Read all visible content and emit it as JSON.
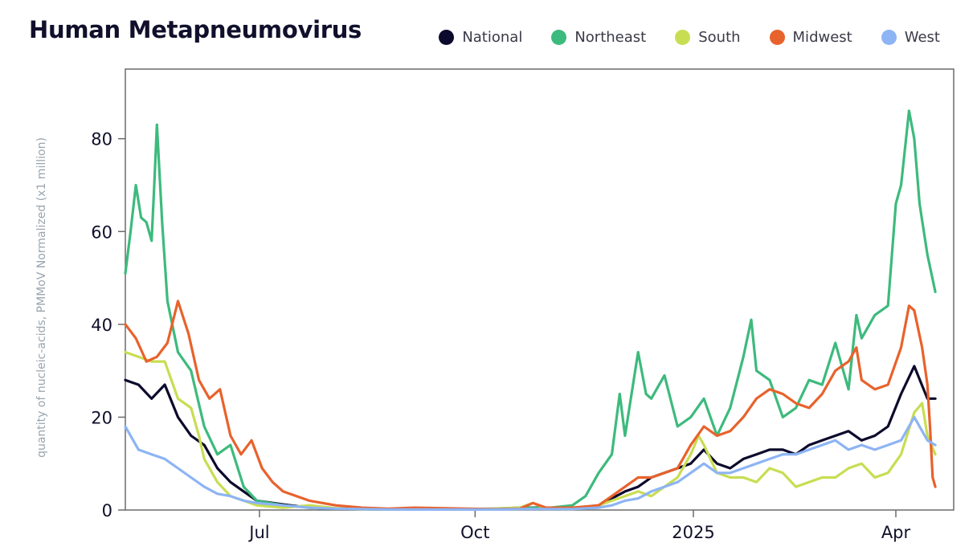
{
  "chart_data": {
    "type": "line",
    "title": "Human Metapneumovirus",
    "ylabel": "quantity of nucleic-acids, PMMoV Normalized (x1 million)",
    "xlabel": "",
    "ylim": [
      0,
      95
    ],
    "xlim": [
      0,
      315
    ],
    "yticks": [
      {
        "value": 0,
        "label": "0"
      },
      {
        "value": 20,
        "label": "20"
      },
      {
        "value": 40,
        "label": "40"
      },
      {
        "value": 60,
        "label": "60"
      },
      {
        "value": 80,
        "label": "80"
      }
    ],
    "xticks": [
      {
        "value": 51,
        "label": "Jul"
      },
      {
        "value": 133,
        "label": "Oct"
      },
      {
        "value": 216,
        "label": "2025"
      },
      {
        "value": 293,
        "label": "Apr"
      }
    ],
    "x_unit": "days since 2024-05-11",
    "legend_position": "top-right",
    "series": [
      {
        "name": "National",
        "color": "#0c0a2c",
        "x": [
          0,
          5,
          10,
          15,
          20,
          25,
          30,
          35,
          40,
          45,
          50,
          60,
          70,
          80,
          90,
          100,
          110,
          120,
          130,
          140,
          150,
          160,
          170,
          180,
          185,
          190,
          195,
          200,
          205,
          210,
          215,
          220,
          225,
          230,
          235,
          240,
          245,
          250,
          255,
          260,
          265,
          270,
          275,
          280,
          285,
          290,
          295,
          300,
          305,
          308
        ],
        "values": [
          28,
          27,
          24,
          27,
          20,
          16,
          14,
          9,
          6,
          4,
          2,
          1.2,
          0.5,
          0.3,
          0.2,
          0.1,
          0.1,
          0.1,
          0.1,
          0.2,
          0.5,
          0.5,
          0.3,
          1,
          2.5,
          4,
          5,
          7,
          8,
          9,
          10,
          13,
          10,
          9,
          11,
          12,
          13,
          13,
          12,
          14,
          15,
          16,
          17,
          15,
          16,
          18,
          25,
          31,
          24,
          24
        ]
      },
      {
        "name": "Northeast",
        "color": "#3dba7d",
        "x": [
          0,
          2,
          4,
          6,
          8,
          10,
          11,
          12,
          14,
          16,
          20,
          25,
          30,
          35,
          40,
          45,
          50,
          60,
          70,
          80,
          90,
          100,
          110,
          120,
          130,
          140,
          150,
          160,
          170,
          175,
          180,
          185,
          188,
          190,
          195,
          198,
          200,
          205,
          210,
          215,
          220,
          225,
          230,
          235,
          238,
          240,
          245,
          250,
          255,
          260,
          265,
          270,
          275,
          278,
          280,
          285,
          290,
          293,
          295,
          298,
          300,
          302,
          305,
          308
        ],
        "values": [
          51,
          60,
          70,
          63,
          62,
          58,
          70,
          83,
          62,
          45,
          34,
          30,
          18,
          12,
          14,
          5,
          2,
          1,
          0.5,
          0.3,
          0.2,
          0.1,
          0.1,
          0.1,
          0.2,
          0.3,
          0.5,
          0.4,
          1,
          3,
          8,
          12,
          25,
          16,
          34,
          25,
          24,
          29,
          18,
          20,
          24,
          16,
          22,
          33,
          41,
          30,
          28,
          20,
          22,
          28,
          27,
          36,
          26,
          42,
          37,
          42,
          44,
          66,
          70,
          86,
          80,
          66,
          55,
          47
        ]
      },
      {
        "name": "South",
        "color": "#c8dd52",
        "x": [
          0,
          5,
          10,
          15,
          20,
          25,
          28,
          30,
          35,
          40,
          45,
          50,
          60,
          70,
          80,
          90,
          100,
          110,
          120,
          130,
          140,
          150,
          155,
          160,
          170,
          180,
          185,
          190,
          195,
          200,
          205,
          210,
          215,
          218,
          220,
          225,
          230,
          235,
          240,
          245,
          250,
          255,
          260,
          265,
          270,
          275,
          280,
          285,
          290,
          295,
          300,
          303,
          305,
          308
        ],
        "values": [
          34,
          33,
          32,
          32,
          24,
          22,
          16,
          11,
          6,
          3,
          2,
          1,
          0.5,
          1,
          0.4,
          0.2,
          0.1,
          0.1,
          0.1,
          0.1,
          0.3,
          0.5,
          1.5,
          0.3,
          0.2,
          1,
          2,
          3,
          4,
          3,
          5,
          7,
          12,
          16,
          14,
          8,
          7,
          7,
          6,
          9,
          8,
          5,
          6,
          7,
          7,
          9,
          10,
          7,
          8,
          12,
          21,
          23,
          16,
          12
        ]
      },
      {
        "name": "Midwest",
        "color": "#e8622c",
        "x": [
          0,
          4,
          8,
          12,
          16,
          20,
          24,
          28,
          32,
          36,
          40,
          44,
          48,
          52,
          56,
          60,
          70,
          80,
          90,
          100,
          110,
          120,
          130,
          140,
          150,
          155,
          160,
          170,
          180,
          185,
          190,
          195,
          200,
          205,
          210,
          215,
          220,
          225,
          230,
          235,
          240,
          245,
          250,
          255,
          260,
          265,
          270,
          275,
          278,
          280,
          285,
          290,
          295,
          298,
          300,
          303,
          305,
          306,
          307,
          308
        ],
        "values": [
          40,
          37,
          32,
          33,
          36,
          45,
          38,
          28,
          24,
          26,
          16,
          12,
          15,
          9,
          6,
          4,
          2,
          1,
          0.5,
          0.3,
          0.5,
          0.4,
          0.3,
          0.2,
          0.3,
          1.5,
          0.5,
          0.5,
          1,
          3,
          5,
          7,
          7,
          8,
          9,
          14,
          18,
          16,
          17,
          20,
          24,
          26,
          25,
          23,
          22,
          25,
          30,
          32,
          35,
          28,
          26,
          27,
          35,
          44,
          43,
          35,
          27,
          18,
          7,
          5
        ]
      },
      {
        "name": "West",
        "color": "#8db4f4",
        "x": [
          0,
          5,
          10,
          15,
          20,
          25,
          30,
          35,
          40,
          45,
          50,
          60,
          70,
          80,
          90,
          100,
          110,
          120,
          130,
          140,
          150,
          160,
          170,
          180,
          185,
          190,
          195,
          200,
          205,
          210,
          215,
          220,
          225,
          230,
          235,
          240,
          245,
          250,
          255,
          260,
          265,
          270,
          275,
          280,
          285,
          290,
          295,
          300,
          305,
          308
        ],
        "values": [
          18,
          13,
          12,
          11,
          9,
          7,
          5,
          3.5,
          3,
          2,
          1.5,
          1,
          0.5,
          0.3,
          0.2,
          0.1,
          0.1,
          0.1,
          0.1,
          0.1,
          0.2,
          0.2,
          0.2,
          0.5,
          1,
          2,
          2.5,
          4,
          5,
          6,
          8,
          10,
          8,
          8,
          9,
          10,
          11,
          12,
          12,
          13,
          14,
          15,
          13,
          14,
          13,
          14,
          15,
          20,
          15,
          14
        ]
      }
    ]
  }
}
